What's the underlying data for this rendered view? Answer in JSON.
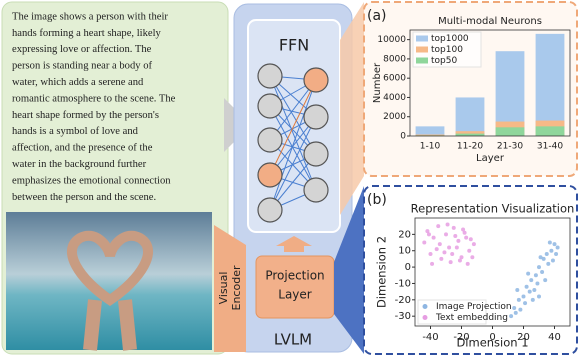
{
  "description": {
    "lines": [
      "The image shows a person with their",
      "hands forming a heart shape, likely",
      "expressing love or affection. The",
      "person is standing near a body of",
      "water, which adds a serene and",
      "romantic atmosphere to the scene. The",
      "heart shape formed by the person's",
      "hands is a symbol of love and",
      "affection, and the presence of the",
      "water in the background further",
      "emphasizes the emotional connection",
      "between the person and the scene."
    ]
  },
  "labels": {
    "visual_encoder": [
      "Visual",
      "Encoder"
    ],
    "ffn": "FFN",
    "projection_layer": [
      "Projection",
      "Layer"
    ],
    "lvlm": "LVLM",
    "panel_a": "(a)",
    "panel_b": "(b)"
  },
  "chart_data": [
    {
      "type": "bar",
      "title": "Multi-modal Neurons",
      "x_label": "Layer",
      "y_label": "Number",
      "categories": [
        "1-10",
        "11-20",
        "21-30",
        "31-40"
      ],
      "series": [
        {
          "name": "top1000",
          "color": "#a9c9ec",
          "values": [
            1000,
            4000,
            8800,
            10600
          ]
        },
        {
          "name": "top100",
          "color": "#f6b987",
          "values": [
            150,
            500,
            1500,
            1600
          ]
        },
        {
          "name": "top50",
          "color": "#8fd69b",
          "values": [
            60,
            250,
            900,
            1000
          ]
        }
      ],
      "ylim": [
        0,
        11000
      ],
      "yticks": [
        0,
        2000,
        4000,
        6000,
        8000,
        10000
      ],
      "legend": "upper left"
    },
    {
      "type": "scatter",
      "title": "Representation Visualization",
      "x_label": "Dimension 1",
      "y_label": "Dimension 2",
      "series": [
        {
          "name": "Image Projection",
          "color": "#8eb6e2",
          "x": [
            12,
            14,
            15,
            17,
            18,
            20,
            21,
            22,
            24,
            25,
            26,
            28,
            29,
            30,
            32,
            33,
            34,
            35,
            36,
            38,
            39,
            40,
            41,
            42,
            16,
            23,
            27,
            31,
            37,
            30
          ],
          "y": [
            -30,
            -25,
            -28,
            -20,
            -26,
            -18,
            -22,
            -12,
            -15,
            -8,
            -20,
            -5,
            -10,
            0,
            -3,
            5,
            -8,
            8,
            2,
            10,
            4,
            14,
            8,
            12,
            -14,
            -4,
            -14,
            6,
            15,
            -18
          ]
        },
        {
          "name": "Text embedding",
          "color": "#e69de2",
          "x": [
            -42,
            -38,
            -35,
            -30,
            -28,
            -25,
            -22,
            -18,
            -15,
            -12,
            -40,
            -33,
            -27,
            -20,
            -16,
            -44,
            -36,
            -31,
            -24,
            -19,
            -14,
            -39,
            -29,
            -23,
            -13,
            -41,
            -34,
            -26,
            -21,
            -17
          ],
          "y": [
            22,
            18,
            25,
            20,
            12,
            24,
            16,
            21,
            10,
            14,
            8,
            5,
            3,
            6,
            2,
            15,
            11,
            9,
            19,
            23,
            17,
            2,
            26,
            12,
            6,
            20,
            14,
            8,
            4,
            18
          ]
        }
      ],
      "xlim": [
        -50,
        50
      ],
      "xticks": [
        -40,
        -20,
        0,
        20,
        40
      ],
      "ylim": [
        -36,
        30
      ],
      "yticks": [
        -30,
        -20,
        -10,
        0,
        10,
        20
      ],
      "legend": "lower left"
    }
  ]
}
